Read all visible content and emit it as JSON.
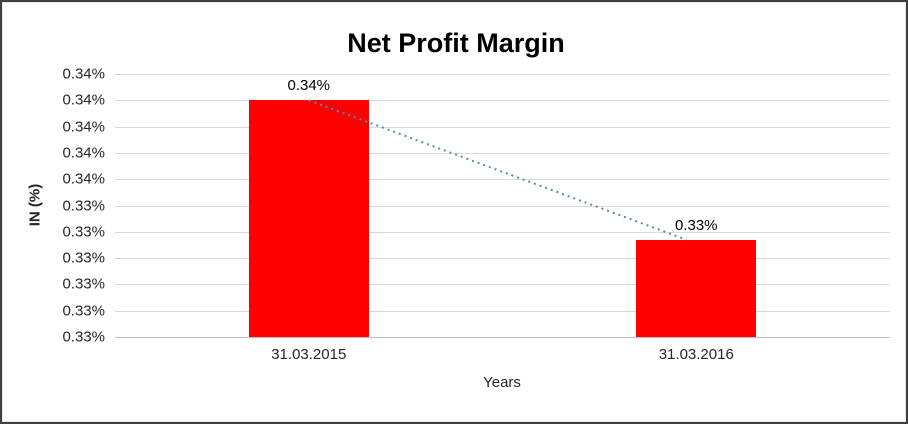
{
  "chart_data": {
    "type": "bar",
    "title": "Net Profit Margin",
    "xlabel": "Years",
    "ylabel": "IN (%)",
    "categories": [
      "31.03.2015",
      "31.03.2016"
    ],
    "values": [
      0.339,
      0.3337
    ],
    "data_labels": [
      "0.34%",
      "0.33%"
    ],
    "ylim": [
      0.33,
      0.34
    ],
    "y_tick_step": 0.001,
    "y_tick_labels_top_to_bottom": [
      "0.34%",
      "0.34%",
      "0.34%",
      "0.34%",
      "0.34%",
      "0.33%",
      "0.33%",
      "0.33%",
      "0.33%",
      "0.33%",
      "0.33%"
    ],
    "grid": true,
    "legend": "none",
    "bar_color": "#ff0000",
    "trendline": {
      "style": "dotted",
      "color": "#4f8cc0"
    }
  }
}
